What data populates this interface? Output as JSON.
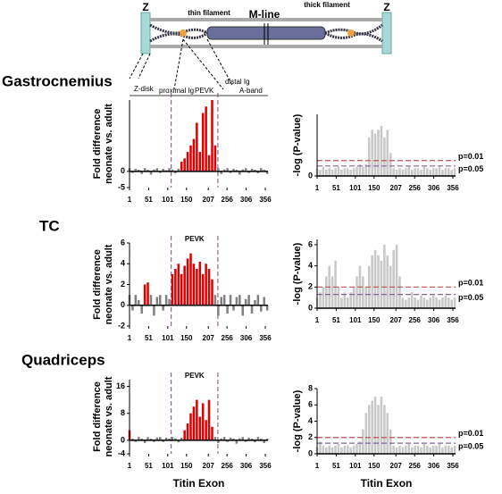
{
  "diagram": {
    "z_left": "Z",
    "thin": "thin filament",
    "mline": "M-line",
    "thick": "thick filament",
    "z_right": "Z"
  },
  "row_labels": [
    "Gastrocnemius",
    "TC",
    "Quadriceps"
  ],
  "regions": [
    "Z-disk",
    "proximal Ig",
    "PEVK",
    "distal Ig",
    "A-band"
  ],
  "chart_data": [
    {
      "type": "bar",
      "ylabel": [
        "Fold difference",
        "neonate vs. adult"
      ],
      "x": [
        1,
        9,
        17,
        25,
        33,
        41,
        49,
        57,
        65,
        73,
        81,
        89,
        97,
        105,
        113,
        121,
        129,
        137,
        145,
        153,
        161,
        169,
        177,
        185,
        193,
        201,
        209,
        217,
        225,
        233,
        241,
        249,
        257,
        265,
        273,
        281,
        289,
        297,
        305,
        313,
        321,
        329,
        337,
        345,
        353,
        361
      ],
      "series": [
        {
          "color": "#808080",
          "values": [
            1,
            -0.5,
            0.8,
            0.5,
            -0.8,
            1,
            0.5,
            -1,
            0.6,
            1,
            -0.5,
            0.8,
            0.4,
            1,
            0.6,
            -0.6,
            0.8,
            null,
            null,
            null,
            null,
            null,
            null,
            null,
            null,
            null,
            null,
            null,
            null,
            1,
            -0.8,
            0.6,
            1,
            -0.5,
            0.8,
            0.5,
            -1,
            0.6,
            1,
            -0.5,
            0.8,
            0.5,
            -0.6,
            1,
            0.5,
            -0.8
          ]
        },
        {
          "color": "#e00000",
          "values": [
            null,
            null,
            null,
            null,
            null,
            null,
            null,
            null,
            null,
            null,
            null,
            null,
            null,
            null,
            null,
            null,
            null,
            3,
            4,
            6,
            8,
            10,
            15,
            6,
            18,
            20,
            5,
            22,
            8,
            null,
            null,
            null,
            null,
            null,
            null,
            null,
            null,
            null,
            null,
            null,
            null,
            null,
            null,
            null,
            null,
            null
          ]
        }
      ],
      "xlim": [
        1,
        363
      ],
      "xticks": [
        1,
        51,
        101,
        150,
        207,
        256,
        306,
        356
      ],
      "ylim": [
        -5,
        22
      ],
      "yticks": [
        -5,
        0
      ],
      "vlines": [
        110,
        232
      ]
    },
    {
      "type": "bar",
      "ylabel": "-log (P-value)",
      "x": [
        1,
        9,
        17,
        25,
        33,
        41,
        49,
        57,
        65,
        73,
        81,
        89,
        97,
        105,
        113,
        121,
        129,
        137,
        145,
        153,
        161,
        169,
        177,
        185,
        193,
        201,
        209,
        217,
        225,
        233,
        241,
        249,
        257,
        265,
        273,
        281,
        289,
        297,
        305,
        313,
        321,
        329,
        337,
        345,
        353,
        361
      ],
      "series": [
        {
          "color": "#c8c8c8",
          "values": [
            1,
            0.8,
            1.2,
            0.8,
            1,
            0.8,
            1,
            1.2,
            0.8,
            1,
            1,
            0.8,
            1,
            1.2,
            1.5,
            1.2,
            1.5,
            5,
            6,
            5.5,
            6,
            6.5,
            5,
            6,
            3,
            1,
            0.8,
            1,
            0.8,
            1,
            1.2,
            0.8,
            1,
            1,
            0.8,
            1.2,
            1,
            0.8,
            1,
            1,
            1.2,
            0.8,
            1,
            1,
            0.8,
            1
          ]
        }
      ],
      "xlim": [
        1,
        363
      ],
      "xticks": [
        1,
        51,
        101,
        150,
        207,
        256,
        306,
        356
      ],
      "ylim": [
        0,
        8
      ],
      "yticks": [
        0
      ],
      "thresholds": [
        {
          "value": 2,
          "label": "p=0.01",
          "color": "#c0504d"
        },
        {
          "value": 1.3,
          "label": "p=0.05",
          "color": "#8064a2"
        }
      ]
    },
    {
      "type": "bar",
      "ylabel": [
        "Fold difference",
        "neonate vs. adult"
      ],
      "x": [
        1,
        9,
        17,
        25,
        33,
        41,
        49,
        57,
        65,
        73,
        81,
        89,
        97,
        105,
        113,
        121,
        129,
        137,
        145,
        153,
        161,
        169,
        177,
        185,
        193,
        201,
        209,
        217,
        225,
        233,
        241,
        249,
        257,
        265,
        273,
        281,
        289,
        297,
        305,
        313,
        321,
        329,
        337,
        345,
        353,
        361
      ],
      "series": [
        {
          "color": "#808080",
          "values": [
            1,
            -0.5,
            1,
            0.5,
            -0.8,
            null,
            null,
            1,
            -1,
            0.8,
            1,
            -0.5,
            1,
            0.6,
            null,
            null,
            null,
            null,
            null,
            null,
            null,
            null,
            null,
            null,
            null,
            null,
            null,
            null,
            1,
            -1,
            0.8,
            1,
            -0.8,
            1,
            -0.5,
            0.8,
            1,
            -1,
            0.6,
            1,
            -0.8,
            0.5,
            1,
            -0.6,
            0.8,
            -0.5
          ]
        },
        {
          "color": "#e00000",
          "values": [
            null,
            null,
            null,
            null,
            null,
            2,
            2.2,
            null,
            null,
            null,
            null,
            null,
            null,
            null,
            3,
            3.5,
            4,
            3,
            3.8,
            4.5,
            5,
            4,
            3.5,
            4.2,
            3,
            4,
            3.5,
            2.5,
            null,
            null,
            null,
            null,
            null,
            null,
            null,
            null,
            null,
            null,
            null,
            null,
            null,
            null,
            null,
            null,
            null,
            null
          ]
        }
      ],
      "xlim": [
        1,
        363
      ],
      "xticks": [
        1,
        51,
        101,
        150,
        207,
        256,
        306,
        356
      ],
      "ylim": [
        -2,
        6
      ],
      "yticks": [
        -2,
        0,
        2,
        4,
        6
      ],
      "vlines": [
        110,
        232
      ],
      "vline_label": "PEVK"
    },
    {
      "type": "bar",
      "ylabel": "-log (P-value)",
      "x": [
        1,
        9,
        17,
        25,
        33,
        41,
        49,
        57,
        65,
        73,
        81,
        89,
        97,
        105,
        113,
        121,
        129,
        137,
        145,
        153,
        161,
        169,
        177,
        185,
        193,
        201,
        209,
        217,
        225,
        233,
        241,
        249,
        257,
        265,
        273,
        281,
        289,
        297,
        305,
        313,
        321,
        329,
        337,
        345,
        353,
        361
      ],
      "series": [
        {
          "color": "#c8c8c8",
          "values": [
            1,
            1.5,
            2,
            3,
            4,
            3,
            4.5,
            2,
            1,
            1.5,
            1,
            1.5,
            2,
            3,
            4,
            3,
            2,
            4,
            5,
            5.5,
            5,
            4.5,
            6,
            5,
            4,
            5.5,
            6,
            3,
            1,
            0.8,
            1,
            1.5,
            1,
            0.8,
            1.2,
            1,
            0.8,
            1,
            1.2,
            1,
            0.8,
            1,
            1.2,
            1,
            0.8,
            1
          ]
        }
      ],
      "xlim": [
        1,
        363
      ],
      "xticks": [
        1,
        51,
        101,
        150,
        207,
        256,
        306,
        356
      ],
      "ylim": [
        0,
        6.5
      ],
      "yticks": [
        0,
        2,
        4,
        6
      ],
      "thresholds": [
        {
          "value": 2,
          "label": "p=0.01",
          "color": "#c0504d"
        },
        {
          "value": 1.3,
          "label": "p=0.05",
          "color": "#8064a2"
        }
      ]
    },
    {
      "type": "bar",
      "ylabel": [
        "Fold difference",
        "neonate vs. adult"
      ],
      "xlabel": "Titin Exon",
      "x": [
        1,
        9,
        17,
        25,
        33,
        41,
        49,
        57,
        65,
        73,
        81,
        89,
        97,
        105,
        113,
        121,
        129,
        137,
        145,
        153,
        161,
        169,
        177,
        185,
        193,
        201,
        209,
        217,
        225,
        233,
        241,
        249,
        257,
        265,
        273,
        281,
        289,
        297,
        305,
        313,
        321,
        329,
        337,
        345,
        353,
        361
      ],
      "series": [
        {
          "color": "#808080",
          "values": [
            null,
            0.5,
            -0.5,
            1,
            0.5,
            -0.8,
            1,
            0.5,
            -0.5,
            0.8,
            1,
            -0.5,
            0.8,
            0.5,
            1,
            0.6,
            -0.6,
            0.8,
            null,
            null,
            null,
            null,
            null,
            null,
            null,
            null,
            null,
            null,
            1,
            -0.8,
            0.6,
            1,
            -0.5,
            0.8,
            0.5,
            -1,
            0.6,
            1,
            -0.5,
            0.8,
            0.5,
            -0.6,
            1,
            0.5,
            -0.8,
            0.5
          ]
        },
        {
          "color": "#e00000",
          "values": [
            3,
            null,
            null,
            null,
            null,
            null,
            null,
            null,
            null,
            null,
            null,
            null,
            null,
            null,
            null,
            null,
            null,
            null,
            3,
            5,
            8,
            10,
            12,
            7,
            11,
            6,
            12,
            4,
            null,
            null,
            null,
            null,
            null,
            null,
            null,
            null,
            null,
            null,
            null,
            null,
            null,
            null,
            null,
            null,
            null,
            null
          ]
        }
      ],
      "xlim": [
        1,
        363
      ],
      "xticks": [
        1,
        51,
        101,
        150,
        207,
        256,
        306,
        356
      ],
      "ylim": [
        -4,
        18
      ],
      "yticks": [
        -4,
        0,
        8,
        16
      ],
      "vlines": [
        110,
        232
      ],
      "vline_label": "PEVK"
    },
    {
      "type": "bar",
      "ylabel": "-log (P-value)",
      "xlabel": "Titin Exon",
      "x": [
        1,
        9,
        17,
        25,
        33,
        41,
        49,
        57,
        65,
        73,
        81,
        89,
        97,
        105,
        113,
        121,
        129,
        137,
        145,
        153,
        161,
        169,
        177,
        185,
        193,
        201,
        209,
        217,
        225,
        233,
        241,
        249,
        257,
        265,
        273,
        281,
        289,
        297,
        305,
        313,
        321,
        329,
        337,
        345,
        353,
        361
      ],
      "series": [
        {
          "color": "#c8c8c8",
          "values": [
            0.8,
            1.5,
            1,
            0.8,
            1,
            0.8,
            1,
            1.2,
            0.8,
            1,
            1,
            0.8,
            1,
            1.2,
            1.5,
            3,
            5,
            6,
            6.5,
            7,
            6,
            7,
            6,
            5,
            3,
            1,
            0.8,
            1,
            0.8,
            1,
            1.2,
            0.8,
            1,
            1,
            0.8,
            1.2,
            1,
            0.8,
            1,
            1,
            1.2,
            0.8,
            1,
            1,
            0.8,
            1
          ]
        }
      ],
      "xlim": [
        1,
        363
      ],
      "xticks": [
        1,
        51,
        101,
        150,
        207,
        256,
        306,
        356
      ],
      "ylim": [
        0,
        8
      ],
      "yticks": [
        0,
        2,
        4,
        6,
        8
      ],
      "thresholds": [
        {
          "value": 2,
          "label": "p=0.01",
          "color": "#c0504d"
        },
        {
          "value": 1.3,
          "label": "p=0.05",
          "color": "#8064a2"
        }
      ]
    }
  ]
}
